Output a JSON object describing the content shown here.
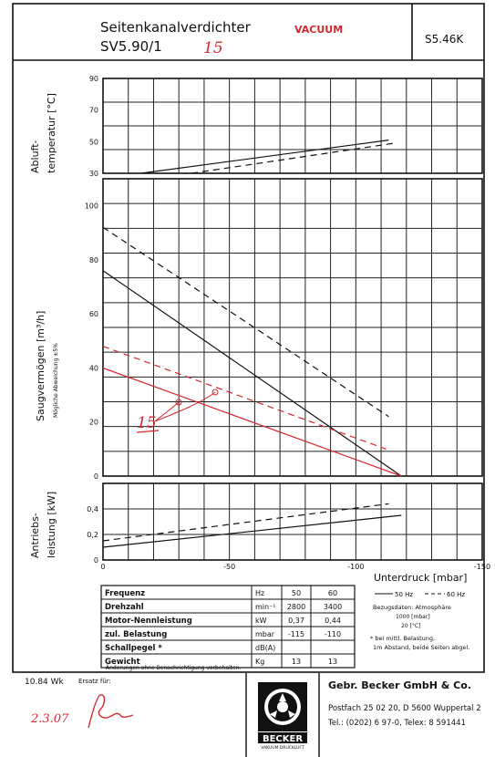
{
  "header": {
    "title_line1": "Seitenkanalverdichter",
    "title_line2": "SV5.90/1",
    "vacuum_label": "VACUUM",
    "handwritten_note": "15",
    "doc_code": "S5.46K"
  },
  "chart_data": [
    {
      "type": "line",
      "ylabel": "Abluft-temperatur [°C]",
      "yticks": [
        "90",
        "70",
        "50",
        "30"
      ],
      "ylim": [
        30,
        90
      ],
      "xlim": [
        0,
        -150
      ],
      "grid": true,
      "series": [
        {
          "name": "50 Hz",
          "style": "solid",
          "color": "#111111",
          "x": [
            -15,
            -113
          ],
          "y": [
            30,
            51
          ]
        },
        {
          "name": "60 Hz",
          "style": "dashed",
          "color": "#111111",
          "x": [
            -35,
            -115
          ],
          "y": [
            30,
            49
          ]
        }
      ]
    },
    {
      "type": "line",
      "ylabel": "Saugvermögen [m³/h]",
      "ylabel_sub": "Mögliche Abweichung ±5%",
      "yticks": [
        "100",
        "80",
        "60",
        "40",
        "20",
        "0"
      ],
      "ylim": [
        0,
        110
      ],
      "xlim": [
        0,
        -150
      ],
      "grid": true,
      "series": [
        {
          "name": "50 Hz",
          "style": "solid",
          "color": "#111111",
          "x": [
            0,
            -118
          ],
          "y": [
            76,
            0
          ]
        },
        {
          "name": "60 Hz",
          "style": "dashed",
          "color": "#111111",
          "x": [
            0,
            -113
          ],
          "y": [
            92,
            22
          ]
        },
        {
          "name": "15",
          "style": "solid",
          "color": "#d6282f",
          "x": [
            0,
            -118
          ],
          "y": [
            40,
            0
          ]
        },
        {
          "name": "15",
          "style": "dashed",
          "color": "#d6282f",
          "x": [
            0,
            -112
          ],
          "y": [
            48,
            10
          ]
        }
      ]
    },
    {
      "type": "line",
      "ylabel": "Antriebs-leistung [kW]",
      "yticks": [
        "0,4",
        "0,2",
        "0"
      ],
      "ylim": [
        0,
        0.6
      ],
      "xlim": [
        0,
        -150
      ],
      "xticks": [
        "0",
        "-50",
        "-100",
        "-150"
      ],
      "xlabel": "Unterdruck [mbar]",
      "grid": true,
      "series": [
        {
          "name": "50 Hz",
          "style": "solid",
          "color": "#111111",
          "x": [
            0,
            -118
          ],
          "y": [
            0.1,
            0.35
          ]
        },
        {
          "name": "60 Hz",
          "style": "dashed",
          "color": "#111111",
          "x": [
            0,
            -113
          ],
          "y": [
            0.15,
            0.44
          ]
        }
      ]
    }
  ],
  "legend": {
    "hz50": "50 Hz",
    "hz60": "60 Hz",
    "bezug_title": "Bezugsdaten: Atmosphäre",
    "bezug_l1": "1000 [mbar]",
    "bezug_l2": "20 [°C]",
    "note_l1": "* bei mittl. Belastung,",
    "note_l2": "1m Abstand, beide Seiten abgel."
  },
  "table": {
    "rows": [
      {
        "label": "Frequenz",
        "unit": "Hz",
        "v50": "50",
        "v60": "60"
      },
      {
        "label": "Drehzahl",
        "unit": "min⁻¹",
        "v50": "2800",
        "v60": "3400"
      },
      {
        "label": "Motor-Nennleistung",
        "unit": "kW",
        "v50": "0,37",
        "v60": "0,44"
      },
      {
        "label": "zul. Belastung",
        "unit": "mbar",
        "v50": "-115",
        "v60": "-110"
      },
      {
        "label": "Schallpegel *",
        "unit": "dB(A)",
        "v50": "",
        "v60": ""
      },
      {
        "label": "Gewicht",
        "unit": "Kg",
        "v50": "13",
        "v60": "13"
      }
    ],
    "footnote": "Änderungen ohne Benachrichtigung vorbehalten."
  },
  "footer": {
    "doc_id": "10.84 Wk",
    "ersatz": "Ersatz für:",
    "handwritten_date": "2.3.07",
    "logo_text": "BECKER",
    "logo_sub": "VAKUUM DRUCKLUFT",
    "company": "Gebr. Becker GmbH & Co.",
    "address": "Postfach 25 02 20, D 5600 Wuppertal 2",
    "phone": "Tel.: (0202) 6 97-0, Telex: 8 591441"
  }
}
